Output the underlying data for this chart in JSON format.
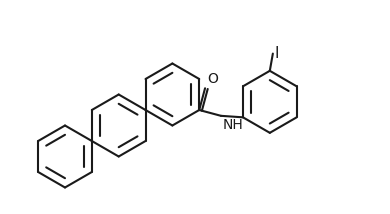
{
  "background_color": "#ffffff",
  "line_color": "#1a1a1a",
  "line_width": 1.5,
  "label_color": "#1a1a1a",
  "fig_width": 3.9,
  "fig_height": 2.14,
  "dpi": 100,
  "font_size": 10,
  "amide_O_label": "O",
  "amide_NH_label": "NH",
  "iodine_label": "I"
}
